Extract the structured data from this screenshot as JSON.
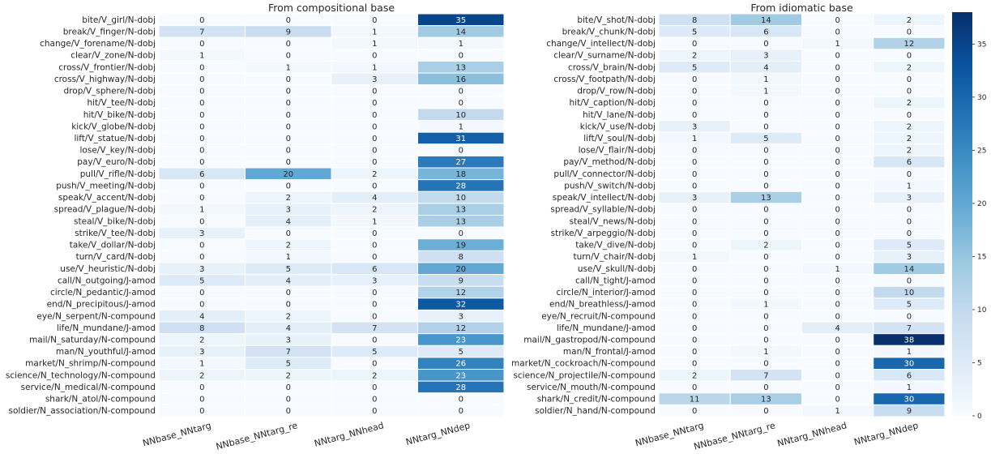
{
  "chart_data": [
    {
      "type": "heatmap",
      "title": "From compositional base",
      "columns": [
        "NNbase_NNtarg",
        "NNbase_NNtarg_re",
        "NNtarg_NNhead",
        "NNtarg_NNdep"
      ],
      "rows": [
        "bite/V_girl/N-dobj",
        "break/V_finger/N-dobj",
        "change/V_forename/N-dobj",
        "clear/V_zone/N-dobj",
        "cross/V_frontier/N-dobj",
        "cross/V_highway/N-dobj",
        "drop/V_sphere/N-dobj",
        "hit/V_tee/N-dobj",
        "hit/V_bike/N-dobj",
        "kick/V_globe/N-dobj",
        "lift/V_statue/N-dobj",
        "lose/V_key/N-dobj",
        "pay/V_euro/N-dobj",
        "pull/V_rifle/N-dobj",
        "push/V_meeting/N-dobj",
        "speak/V_accent/N-dobj",
        "spread/V_plague/N-dobj",
        "steal/V_bike/N-dobj",
        "strike/V_tee/N-dobj",
        "take/V_dollar/N-dobj",
        "turn/V_card/N-dobj",
        "use/V_heuristic/N-dobj",
        "call/N_outgoing/J-amod",
        "circle/N_pedantic/J-amod",
        "end/N_precipitous/J-amod",
        "eye/N_serpent/N-compound",
        "life/N_mundane/J-amod",
        "mail/N_saturday/N-compound",
        "man/N_youthful/J-amod",
        "market/N_shrimp/N-compound",
        "science/N_technology/N-compound",
        "service/N_medical/N-compound",
        "shark/N_atol/N-compound",
        "soldier/N_association/N-compound"
      ],
      "values": [
        [
          0,
          0,
          0,
          35
        ],
        [
          7,
          9,
          1,
          14
        ],
        [
          0,
          0,
          1,
          1
        ],
        [
          1,
          0,
          0,
          0
        ],
        [
          0,
          1,
          1,
          13
        ],
        [
          0,
          0,
          3,
          16
        ],
        [
          0,
          0,
          0,
          0
        ],
        [
          0,
          0,
          0,
          0
        ],
        [
          0,
          0,
          0,
          10
        ],
        [
          0,
          0,
          0,
          1
        ],
        [
          0,
          0,
          0,
          31
        ],
        [
          0,
          0,
          0,
          0
        ],
        [
          0,
          0,
          0,
          27
        ],
        [
          6,
          20,
          2,
          18
        ],
        [
          0,
          0,
          0,
          28
        ],
        [
          0,
          2,
          4,
          10
        ],
        [
          1,
          3,
          2,
          13
        ],
        [
          0,
          4,
          1,
          13
        ],
        [
          3,
          0,
          0,
          0
        ],
        [
          0,
          2,
          0,
          19
        ],
        [
          0,
          1,
          0,
          8
        ],
        [
          3,
          5,
          6,
          20
        ],
        [
          5,
          4,
          3,
          9
        ],
        [
          0,
          0,
          0,
          12
        ],
        [
          0,
          0,
          0,
          32
        ],
        [
          4,
          2,
          0,
          3
        ],
        [
          8,
          4,
          7,
          12
        ],
        [
          2,
          3,
          0,
          23
        ],
        [
          3,
          7,
          5,
          5
        ],
        [
          1,
          5,
          0,
          26
        ],
        [
          2,
          2,
          2,
          23
        ],
        [
          0,
          0,
          0,
          28
        ],
        [
          0,
          0,
          0,
          0
        ],
        [
          0,
          0,
          0,
          0
        ]
      ]
    },
    {
      "type": "heatmap",
      "title": "From idiomatic base",
      "columns": [
        "NNbase_NNtarg",
        "NNbase_NNtarg_re",
        "NNtarg_NNhead",
        "NNtarg_NNdep"
      ],
      "rows": [
        "bite/V_shot/N-dobj",
        "break/V_chunk/N-dobj",
        "change/V_intellect/N-dobj",
        "clear/V_surname/N-dobj",
        "cross/V_brain/N-dobj",
        "cross/V_footpath/N-dobj",
        "drop/V_row/N-dobj",
        "hit/V_caption/N-dobj",
        "hit/V_lane/N-dobj",
        "kick/V_use/N-dobj",
        "lift/V_soul/N-dobj",
        "lose/V_flair/N-dobj",
        "pay/V_method/N-dobj",
        "pull/V_connector/N-dobj",
        "push/V_switch/N-dobj",
        "speak/V_intellect/N-dobj",
        "spread/V_syllable/N-dobj",
        "steal/V_news/N-dobj",
        "strike/V_arpeggio/N-dobj",
        "take/V_dive/N-dobj",
        "turn/V_chair/N-dobj",
        "use/V_skull/N-dobj",
        "call/N_tight/J-amod",
        "circle/N_interior/J-amod",
        "end/N_breathless/J-amod",
        "eye/N_recruit/N-compound",
        "life/N_mundane/J-amod",
        "mail/N_gastropod/N-compound",
        "man/N_frontal/J-amod",
        "market/N_cockroach/N-compound",
        "science/N_projectile/N-compound",
        "service/N_mouth/N-compound",
        "shark/N_credit/N-compound",
        "soldier/N_hand/N-compound"
      ],
      "values": [
        [
          8,
          14,
          0,
          2
        ],
        [
          5,
          6,
          0,
          0
        ],
        [
          0,
          0,
          1,
          12
        ],
        [
          2,
          3,
          0,
          0
        ],
        [
          5,
          4,
          0,
          2
        ],
        [
          0,
          1,
          0,
          0
        ],
        [
          0,
          1,
          0,
          0
        ],
        [
          0,
          0,
          0,
          2
        ],
        [
          0,
          0,
          0,
          0
        ],
        [
          3,
          0,
          0,
          2
        ],
        [
          1,
          5,
          0,
          2
        ],
        [
          0,
          0,
          0,
          2
        ],
        [
          0,
          0,
          0,
          6
        ],
        [
          0,
          0,
          0,
          0
        ],
        [
          0,
          0,
          0,
          1
        ],
        [
          3,
          13,
          0,
          3
        ],
        [
          0,
          0,
          0,
          0
        ],
        [
          0,
          0,
          0,
          0
        ],
        [
          0,
          0,
          0,
          0
        ],
        [
          0,
          2,
          0,
          5
        ],
        [
          1,
          0,
          0,
          3
        ],
        [
          0,
          0,
          1,
          14
        ],
        [
          0,
          0,
          0,
          0
        ],
        [
          0,
          0,
          0,
          10
        ],
        [
          0,
          1,
          0,
          5
        ],
        [
          0,
          0,
          0,
          0
        ],
        [
          0,
          0,
          4,
          7
        ],
        [
          0,
          0,
          0,
          38
        ],
        [
          0,
          1,
          0,
          1
        ],
        [
          0,
          0,
          0,
          30
        ],
        [
          2,
          7,
          0,
          6
        ],
        [
          0,
          0,
          0,
          1
        ],
        [
          11,
          13,
          0,
          30
        ],
        [
          0,
          0,
          1,
          9
        ]
      ]
    }
  ],
  "colorbar": {
    "colormap": "Blues",
    "min": 0,
    "max": 38,
    "ticks": [
      0,
      5,
      10,
      15,
      20,
      25,
      30,
      35
    ]
  },
  "colors": {
    "low": "#f7fbff",
    "high": "#08306b",
    "cell_border": "#ffffff",
    "text_dark": "#262626",
    "text_light": "#ffffff"
  }
}
